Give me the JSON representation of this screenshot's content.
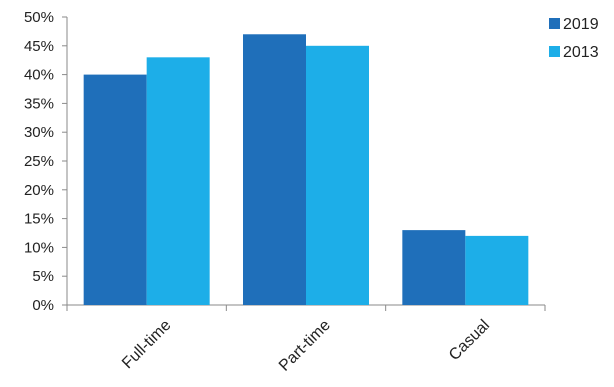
{
  "chart_data": {
    "type": "bar",
    "title": "",
    "xlabel": "",
    "ylabel": "",
    "categories": [
      "Full-time",
      "Part-time",
      "Casual"
    ],
    "series": [
      {
        "name": "2019",
        "values": [
          40,
          47,
          13
        ],
        "color": "#1f6fba"
      },
      {
        "name": "2013",
        "values": [
          43,
          45,
          12
        ],
        "color": "#1daee8"
      }
    ],
    "ylim": [
      0,
      50
    ],
    "yticks": [
      "0%",
      "5%",
      "10%",
      "15%",
      "20%",
      "25%",
      "30%",
      "35%",
      "40%",
      "45%",
      "50%"
    ],
    "grid": false,
    "legend_position": "top-right"
  }
}
